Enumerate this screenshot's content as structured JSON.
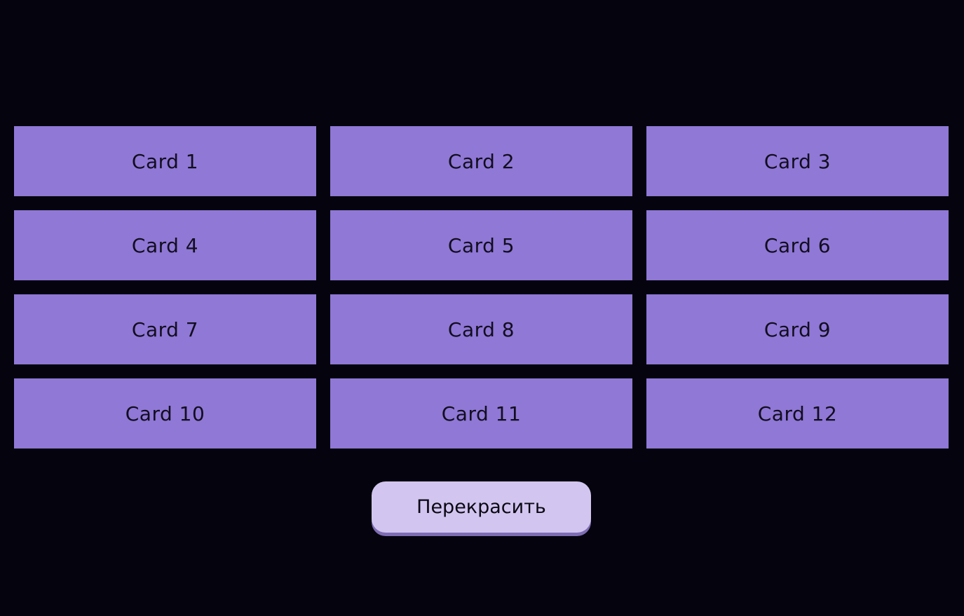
{
  "theme": {
    "background": "#05030d",
    "card_color": "#8f78d6",
    "button_color": "#d2c6f0",
    "button_shadow": "#7e6db3"
  },
  "cards": [
    {
      "label": "Card 1"
    },
    {
      "label": "Card 2"
    },
    {
      "label": "Card 3"
    },
    {
      "label": "Card 4"
    },
    {
      "label": "Card 5"
    },
    {
      "label": "Card 6"
    },
    {
      "label": "Card 7"
    },
    {
      "label": "Card 8"
    },
    {
      "label": "Card 9"
    },
    {
      "label": "Card 10"
    },
    {
      "label": "Card 11"
    },
    {
      "label": "Card 12"
    }
  ],
  "recolor_button": {
    "label": "Перекрасить"
  }
}
